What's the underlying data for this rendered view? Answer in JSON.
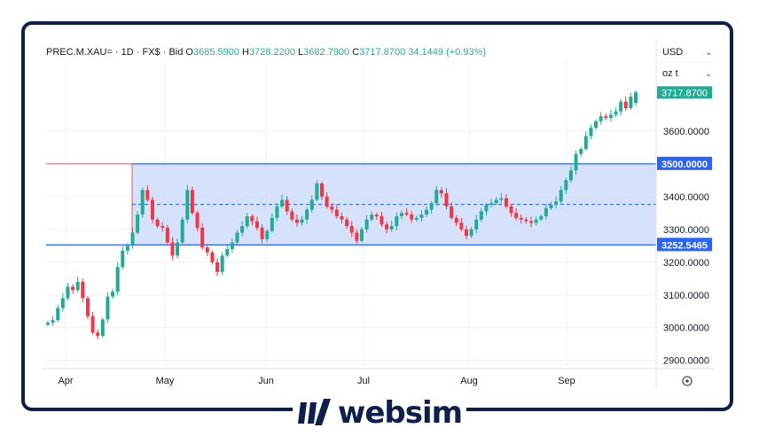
{
  "header": {
    "symbol": "PREC.M.XAU=",
    "interval": "1D",
    "exchange": "FX$",
    "price_type": "Bid",
    "open_label": "O",
    "open": "3685.5900",
    "high_label": "H",
    "high": "3728.2200",
    "low_label": "L",
    "low": "3682.7900",
    "close_label": "C",
    "close": "3717.8700",
    "change": "34.1449 (+0.93%)"
  },
  "currency_select": {
    "value": "USD"
  },
  "unit_select": {
    "value": "oz t"
  },
  "brand": {
    "name": "websim"
  },
  "colors": {
    "up": "#22ab94",
    "down": "#f23645",
    "zone_fill": "#cfdcfb",
    "line_blue": "#2962ff",
    "line_red": "#e05a5a",
    "brand": "#0d1f4a"
  },
  "chart_data": {
    "type": "candlestick",
    "title": "",
    "x_ticks": [
      "Apr",
      "May",
      "Jun",
      "Jul",
      "Aug",
      "Sep"
    ],
    "y_ticks": [
      "3600.0000",
      "3500.0000",
      "3400.0000",
      "3300.0000",
      "3200.0000",
      "3100.0000",
      "3000.0000",
      "2900.0000"
    ],
    "ylim": [
      2870,
      3780
    ],
    "grid": true,
    "range_zone": {
      "top": 3500.0,
      "bottom": 3252.5465,
      "mid": 3376.27,
      "top_label": "3500.0000",
      "bottom_label": "3252.5465"
    },
    "last_price": {
      "value": 3717.87,
      "label": "3717.8700"
    },
    "close_series": [
      3015,
      3023,
      3060,
      3090,
      3125,
      3115,
      3140,
      3090,
      3035,
      2985,
      2975,
      3025,
      3095,
      3110,
      3185,
      3235,
      3250,
      3290,
      3345,
      3420,
      3390,
      3330,
      3310,
      3305,
      3260,
      3220,
      3260,
      3330,
      3420,
      3350,
      3305,
      3245,
      3230,
      3200,
      3170,
      3220,
      3240,
      3260,
      3290,
      3310,
      3340,
      3325,
      3305,
      3270,
      3295,
      3335,
      3370,
      3390,
      3355,
      3330,
      3320,
      3330,
      3360,
      3390,
      3440,
      3400,
      3370,
      3360,
      3340,
      3330,
      3310,
      3290,
      3265,
      3300,
      3330,
      3345,
      3340,
      3315,
      3300,
      3310,
      3340,
      3350,
      3345,
      3330,
      3335,
      3345,
      3360,
      3380,
      3420,
      3410,
      3370,
      3335,
      3320,
      3300,
      3280,
      3300,
      3330,
      3355,
      3375,
      3380,
      3390,
      3395,
      3370,
      3350,
      3335,
      3330,
      3325,
      3320,
      3330,
      3340,
      3365,
      3375,
      3385,
      3420,
      3450,
      3480,
      3530,
      3545,
      3585,
      3610,
      3630,
      3645,
      3640,
      3650,
      3660,
      3690,
      3670,
      3705,
      3718
    ]
  }
}
